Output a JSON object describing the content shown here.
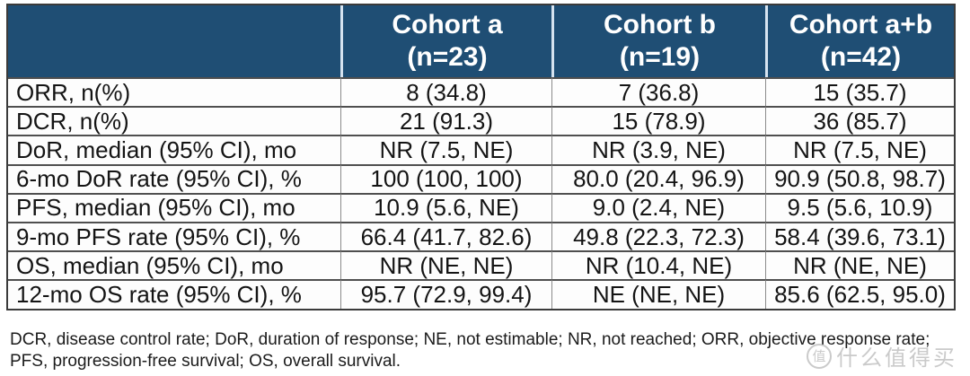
{
  "table": {
    "header": {
      "corner": "",
      "cohort_a": {
        "name": "Cohort a",
        "n": "(n=23)"
      },
      "cohort_b": {
        "name": "Cohort b",
        "n": "(n=19)"
      },
      "cohort_ab": {
        "name": "Cohort a+b",
        "n": "(n=42)"
      }
    },
    "rows": [
      {
        "label": "ORR, n(%)",
        "a": "8 (34.8)",
        "b": "7 (36.8)",
        "ab": "15 (35.7)"
      },
      {
        "label": "DCR, n(%)",
        "a": "21 (91.3)",
        "b": "15 (78.9)",
        "ab": "36 (85.7)"
      },
      {
        "label": "DoR, median (95% CI), mo",
        "a": "NR (7.5, NE)",
        "b": "NR (3.9, NE)",
        "ab": "NR (7.5, NE)"
      },
      {
        "label": "6-mo DoR rate (95% CI), %",
        "a": "100 (100, 100)",
        "b": "80.0 (20.4, 96.9)",
        "ab": "90.9 (50.8, 98.7)"
      },
      {
        "label": "PFS, median (95% CI), mo",
        "a": "10.9 (5.6, NE)",
        "b": "9.0 (2.4, NE)",
        "ab": "9.5 (5.6, 10.9)"
      },
      {
        "label": "9-mo PFS rate (95% CI), %",
        "a": "66.4 (41.7, 82.6)",
        "b": "49.8 (22.3, 72.3)",
        "ab": "58.4 (39.6, 73.1)"
      },
      {
        "label": "OS, median (95% CI), mo",
        "a": "NR (NE, NE)",
        "b": "NR (10.4, NE)",
        "ab": "NR (NE, NE)"
      },
      {
        "label": "12-mo OS rate (95% CI), %",
        "a": "95.7 (72.9, 99.4)",
        "b": "NE (NE, NE)",
        "ab": "85.6 (62.5, 95.0)"
      }
    ]
  },
  "footnote": {
    "line1": "DCR, disease control rate; DoR, duration of response; NE, not estimable; NR, not reached; ORR, objective response rate;",
    "line2": "PFS, progression-free survival; OS, overall survival."
  },
  "watermark": {
    "badge": "值",
    "text": "什么值得买"
  },
  "colors": {
    "header_bg": "#1F4E74",
    "header_text": "#FFFFFF",
    "body_text": "#141414",
    "border_dark": "#4F4F4F",
    "border_light": "#D6E3F0"
  }
}
